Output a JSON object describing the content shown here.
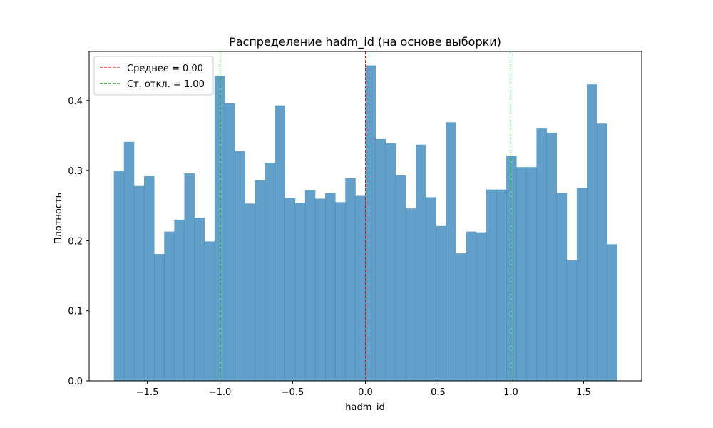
{
  "chart_data": {
    "type": "bar",
    "title": "Распределение hadm_id (на основе выборки)",
    "xlabel": "hadm_id",
    "ylabel": "Плотность",
    "xlim": [
      -1.9,
      1.9
    ],
    "ylim": [
      0,
      0.47
    ],
    "xticks": [
      -1.5,
      -1.0,
      -0.5,
      0.0,
      0.5,
      1.0,
      1.5
    ],
    "xtick_labels": [
      "−1.5",
      "−1.0",
      "−0.5",
      "0.0",
      "0.5",
      "1.0",
      "1.5"
    ],
    "yticks": [
      0.0,
      0.1,
      0.2,
      0.3,
      0.4
    ],
    "ytick_labels": [
      "0.0",
      "0.1",
      "0.2",
      "0.3",
      "0.4"
    ],
    "bar_color": "#1f77b4",
    "bar_opacity": 0.7,
    "bins": {
      "start": -1.73,
      "end": 1.73,
      "values": [
        0.299,
        0.341,
        0.278,
        0.292,
        0.181,
        0.213,
        0.23,
        0.296,
        0.233,
        0.199,
        0.435,
        0.396,
        0.328,
        0.253,
        0.286,
        0.311,
        0.393,
        0.261,
        0.254,
        0.272,
        0.26,
        0.268,
        0.255,
        0.289,
        0.264,
        0.45,
        0.345,
        0.339,
        0.293,
        0.246,
        0.337,
        0.262,
        0.221,
        0.369,
        0.182,
        0.213,
        0.212,
        0.273,
        0.273,
        0.321,
        0.305,
        0.305,
        0.36,
        0.354,
        0.268,
        0.172,
        0.275,
        0.423,
        0.367,
        0.195
      ]
    },
    "vlines": [
      {
        "x": 0.0,
        "color": "#ff0000",
        "label": "Среднее = 0.00"
      },
      {
        "x": -1.0,
        "color": "#008000",
        "label": "Ст. откл. = 1.00"
      },
      {
        "x": 1.0,
        "color": "#008000",
        "label": ""
      }
    ],
    "legend": {
      "placement": "top-left",
      "entries": [
        {
          "label": "Среднее = 0.00",
          "color": "#ff0000"
        },
        {
          "label": "Ст. откл. = 1.00",
          "color": "#008000"
        }
      ]
    },
    "grid": false
  }
}
